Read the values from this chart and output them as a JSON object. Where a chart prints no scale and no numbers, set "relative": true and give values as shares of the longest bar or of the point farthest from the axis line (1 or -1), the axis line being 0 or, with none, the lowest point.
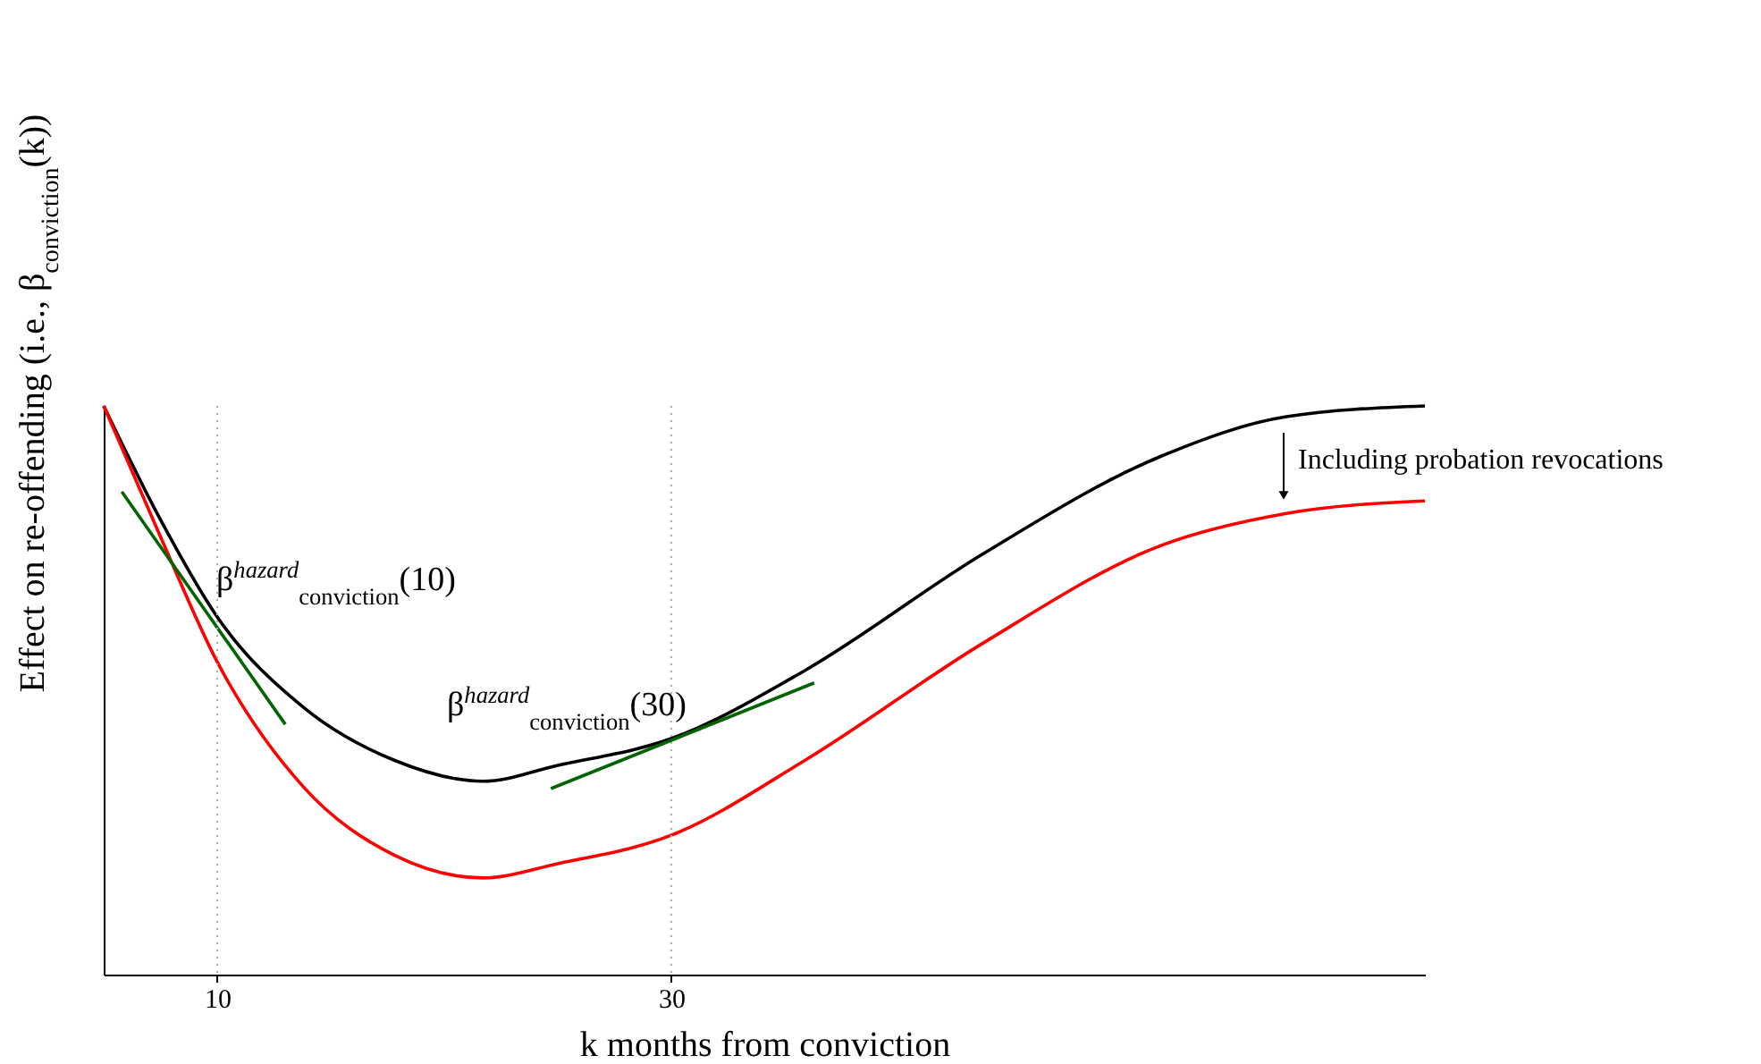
{
  "chart_data": {
    "type": "line",
    "relative": true,
    "xlabel": "k months from conviction",
    "ylabel": "Effect on re-offending   (i.e., β$_{conviction}$(k))",
    "x": [
      5,
      7.5,
      10,
      13.8,
      17.8,
      21.7,
      25,
      30,
      35.9,
      43.7,
      51.6,
      57.1,
      63.2
    ],
    "xlim": [
      5,
      63.2
    ],
    "xticks": [
      10,
      30
    ],
    "grid": false,
    "legend": false,
    "series": [
      {
        "color": "#000000",
        "values": [
          1,
          0.8,
          0.629,
          0.47,
          0.377,
          0.34,
          0.368,
          0.415,
          0.535,
          0.739,
          0.912,
          0.981,
          1
        ]
      },
      {
        "color": "#ff0000",
        "values": [
          1,
          0.77,
          0.55,
          0.33,
          0.21,
          0.17,
          0.195,
          0.245,
          0.377,
          0.582,
          0.755,
          0.811,
          0.833
        ]
      },
      {
        "color": "#006400",
        "x": [
          5.8,
          13
        ],
        "values": [
          0.849,
          0.44
        ]
      },
      {
        "color": "#006400",
        "x": [
          24.7,
          36.3
        ],
        "values": [
          0.327,
          0.513
        ]
      }
    ],
    "ref_lines": [
      {
        "axis": "x",
        "value": 10,
        "color": "#aaaaaa",
        "line_style": "dotted"
      },
      {
        "axis": "x",
        "value": 30,
        "color": "#aaaaaa",
        "line_style": "dotted"
      }
    ],
    "annotations": [
      "β$^{hazard}$$_{conviction}$(10)",
      "β$^{hazard}$$_{conviction}$(30)",
      "Including probation revocations"
    ]
  }
}
